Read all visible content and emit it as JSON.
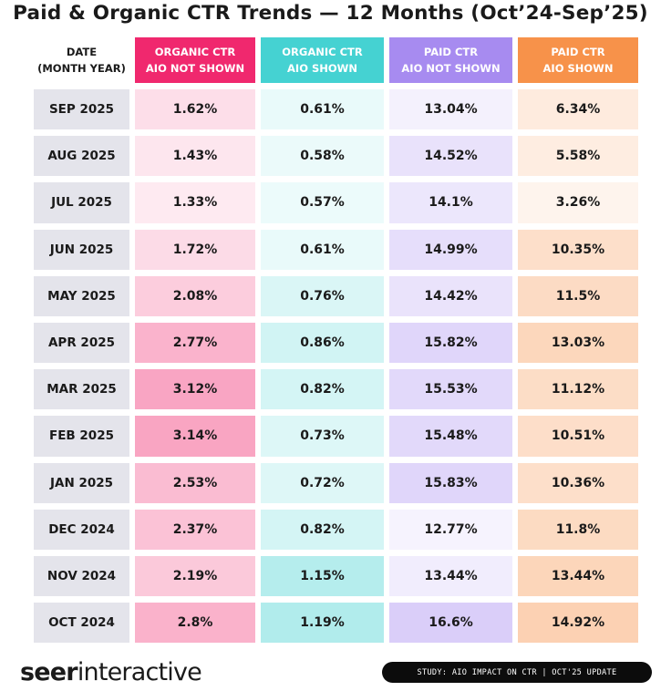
{
  "title": "Paid & Organic CTR Trends — 12 Months (Oct’24-Sep’25)",
  "colors": {
    "organic_not_shown": "#f0286e",
    "organic_shown": "#45d2d2",
    "paid_not_shown": "#a78bf0",
    "paid_shown": "#f7924a",
    "month_cell": "#e4e4eb"
  },
  "chart_data": {
    "type": "table",
    "title": "Paid & Organic CTR Trends — 12 Months (Oct’24-Sep’25)",
    "columns": [
      "DATE\n(MONTH YEAR)",
      "ORGANIC CTR\nAIO NOT SHOWN",
      "ORGANIC CTR\nAIO SHOWN",
      "PAID CTR\nAIO NOT SHOWN",
      "PAID CTR\nAIO SHOWN"
    ],
    "rows": [
      [
        "SEP 2025",
        "1.62%",
        "0.61%",
        "13.04%",
        "6.34%"
      ],
      [
        "AUG 2025",
        "1.43%",
        "0.58%",
        "14.52%",
        "5.58%"
      ],
      [
        "JUL 2025",
        "1.33%",
        "0.57%",
        "14.1%",
        "3.26%"
      ],
      [
        "JUN 2025",
        "1.72%",
        "0.61%",
        "14.99%",
        "10.35%"
      ],
      [
        "MAY 2025",
        "2.08%",
        "0.76%",
        "14.42%",
        "11.5%"
      ],
      [
        "APR 2025",
        "2.77%",
        "0.86%",
        "15.82%",
        "13.03%"
      ],
      [
        "MAR 2025",
        "3.12%",
        "0.82%",
        "15.53%",
        "11.12%"
      ],
      [
        "FEB 2025",
        "3.14%",
        "0.73%",
        "15.48%",
        "10.51%"
      ],
      [
        "JAN 2025",
        "2.53%",
        "0.72%",
        "15.83%",
        "10.36%"
      ],
      [
        "DEC 2024",
        "2.37%",
        "0.82%",
        "12.77%",
        "11.8%"
      ],
      [
        "NOV 2024",
        "2.19%",
        "1.15%",
        "13.44%",
        "13.44%"
      ],
      [
        "OCT 2024",
        "2.8%",
        "1.19%",
        "16.6%",
        "14.92%"
      ]
    ]
  },
  "footer": {
    "logo_bold": "seer",
    "logo_rest": "interactive",
    "badge": "STUDY: AIO IMPACT ON CTR | OCT'25 UPDATE"
  }
}
